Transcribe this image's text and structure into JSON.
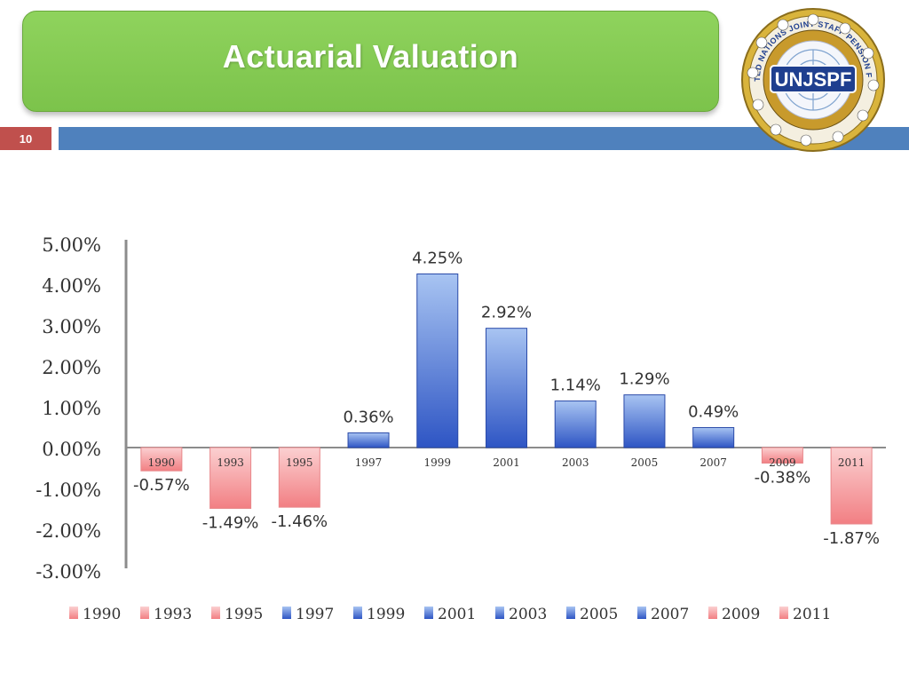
{
  "slide": {
    "title": "Actuarial Valuation",
    "page_number": "10",
    "logo_text": "UNJSPF",
    "logo_ring_text": "UNITED NATIONS JOINT STAFF PENSION FUND"
  },
  "colors": {
    "title_green": "#82c850",
    "page_box_red": "#c0504d",
    "bar_blue": "#4f81bd",
    "positive_bar": "#3a63d0",
    "negative_bar": "#f4878a"
  },
  "chart_data": {
    "type": "bar",
    "categories": [
      "1990",
      "1993",
      "1995",
      "1997",
      "1999",
      "2001",
      "2003",
      "2005",
      "2007",
      "2009",
      "2011"
    ],
    "values": [
      -0.57,
      -1.49,
      -1.46,
      0.36,
      4.25,
      2.92,
      1.14,
      1.29,
      0.49,
      -0.38,
      -1.87
    ],
    "data_labels": [
      "-0.57%",
      "-1.49%",
      "-1.46%",
      "0.36%",
      "4.25%",
      "2.92%",
      "1.14%",
      "1.29%",
      "0.49%",
      "-0.38%",
      "-1.87%"
    ],
    "y_ticks": [
      5,
      4,
      3,
      2,
      1,
      0,
      -1,
      -2,
      -3
    ],
    "y_tick_labels": [
      "5.00%",
      "4.00%",
      "3.00%",
      "2.00%",
      "1.00%",
      "0.00%",
      "-1.00%",
      "-2.00%",
      "-3.00%"
    ],
    "ylim": [
      -3,
      5
    ],
    "grid": false,
    "legend": {
      "position": "bottom",
      "entries": [
        "1990",
        "1993",
        "1995",
        "1997",
        "1999",
        "2001",
        "2003",
        "2005",
        "2007",
        "2009",
        "2011"
      ]
    },
    "title": "",
    "xlabel": "",
    "ylabel": ""
  }
}
